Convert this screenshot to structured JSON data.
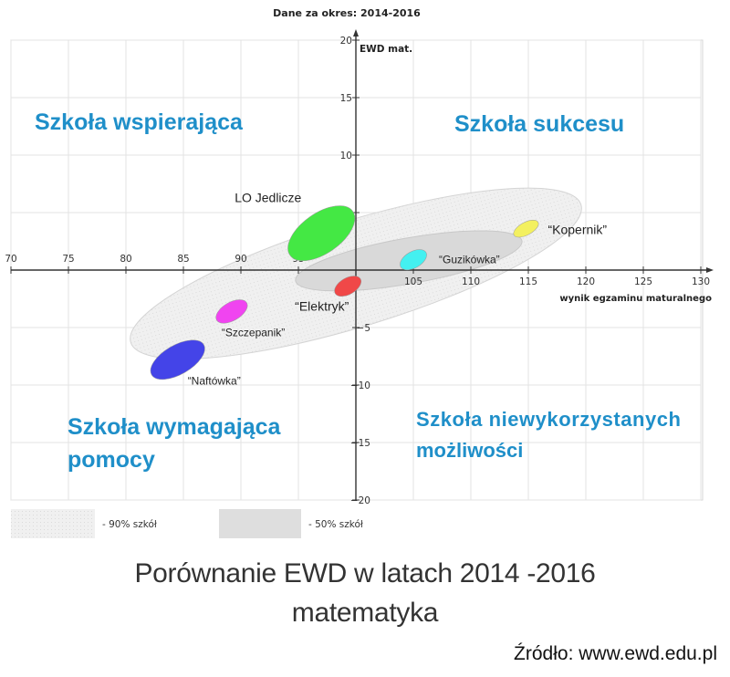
{
  "chart_data": {
    "type": "scatter",
    "title": "Dane za okres: 2014-2016",
    "xlabel": "wynik egzaminu maturalnego",
    "ylabel": "EWD mat.",
    "xlim": [
      70,
      130
    ],
    "ylim": [
      -20,
      20
    ],
    "x_ticks": [
      70,
      75,
      80,
      85,
      90,
      95,
      105,
      110,
      115,
      120,
      125,
      130
    ],
    "y_ticks": [
      20,
      15,
      10,
      5,
      -5,
      -10,
      -15,
      -20
    ],
    "grid": true,
    "quadrants": {
      "top_left": "Szkoła wspierająca",
      "top_right": "Szkoła sukcesu",
      "bottom_left": [
        "Szkoła wymagająca",
        "pomocy"
      ],
      "bottom_right": [
        "Szkoła niewykorzystanych",
        "możliwości"
      ]
    },
    "schools": [
      {
        "label": "LO Jedlicze",
        "x": 97,
        "y": 3.2,
        "color": "#44e844"
      },
      {
        "label": "“Kopernik”",
        "x": 114.8,
        "y": 3.6,
        "color": "#f3f060"
      },
      {
        "label": "“Guzikówka”",
        "x": 105,
        "y": 0.9,
        "color": "#44f0f0"
      },
      {
        "label": "“Elektryk”",
        "x": 99.3,
        "y": -1.4,
        "color": "#f04848"
      },
      {
        "label": "“Szczepanik”",
        "x": 89.2,
        "y": -3.6,
        "color": "#f044f0"
      },
      {
        "label": "“Naftówka”",
        "x": 84.5,
        "y": -7.8,
        "color": "#4444e8"
      }
    ],
    "legend": [
      {
        "label": "- 90% szkół"
      },
      {
        "label": "- 50% szkół"
      }
    ]
  },
  "caption": {
    "line1": "Porównanie EWD w latach 2014 -2016",
    "line2": "matematyka"
  },
  "source": "Źródło: www.ewd.edu.pl"
}
